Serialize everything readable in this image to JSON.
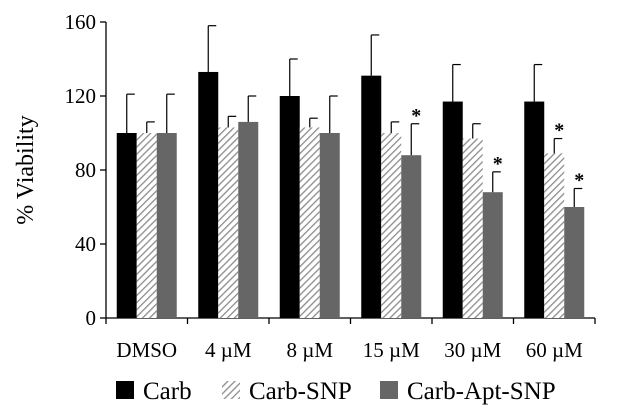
{
  "chart_data": {
    "type": "bar",
    "xlabel": "",
    "ylabel": "% Viability",
    "ylim": [
      0,
      160
    ],
    "yticks": [
      0,
      40,
      80,
      120,
      160
    ],
    "categories": [
      "DMSO",
      "4 µM",
      "8 µM",
      "15 µM",
      "30 µM",
      "60 µM"
    ],
    "series": [
      {
        "name": "Carb",
        "style": "solid",
        "color": "#000000",
        "values": [
          100,
          133,
          120,
          131,
          117,
          117
        ],
        "errors": [
          21,
          25,
          20,
          22,
          20,
          20
        ],
        "significant": [
          false,
          false,
          false,
          false,
          false,
          false
        ]
      },
      {
        "name": "Carb-SNP",
        "style": "hatched",
        "color": "#8c8c8c",
        "values": [
          100,
          103,
          103,
          100,
          97,
          89
        ],
        "errors": [
          6,
          6,
          5,
          6,
          8,
          8
        ],
        "significant": [
          false,
          false,
          false,
          false,
          false,
          true
        ]
      },
      {
        "name": "Carb-Apt-SNP",
        "style": "solid",
        "color": "#666666",
        "values": [
          100,
          106,
          100,
          88,
          68,
          60
        ],
        "errors": [
          21,
          14,
          20,
          17,
          11,
          10
        ],
        "significant": [
          false,
          false,
          false,
          true,
          true,
          true
        ]
      }
    ],
    "significance_marker": "*",
    "grid": false,
    "legend_position": "bottom"
  }
}
